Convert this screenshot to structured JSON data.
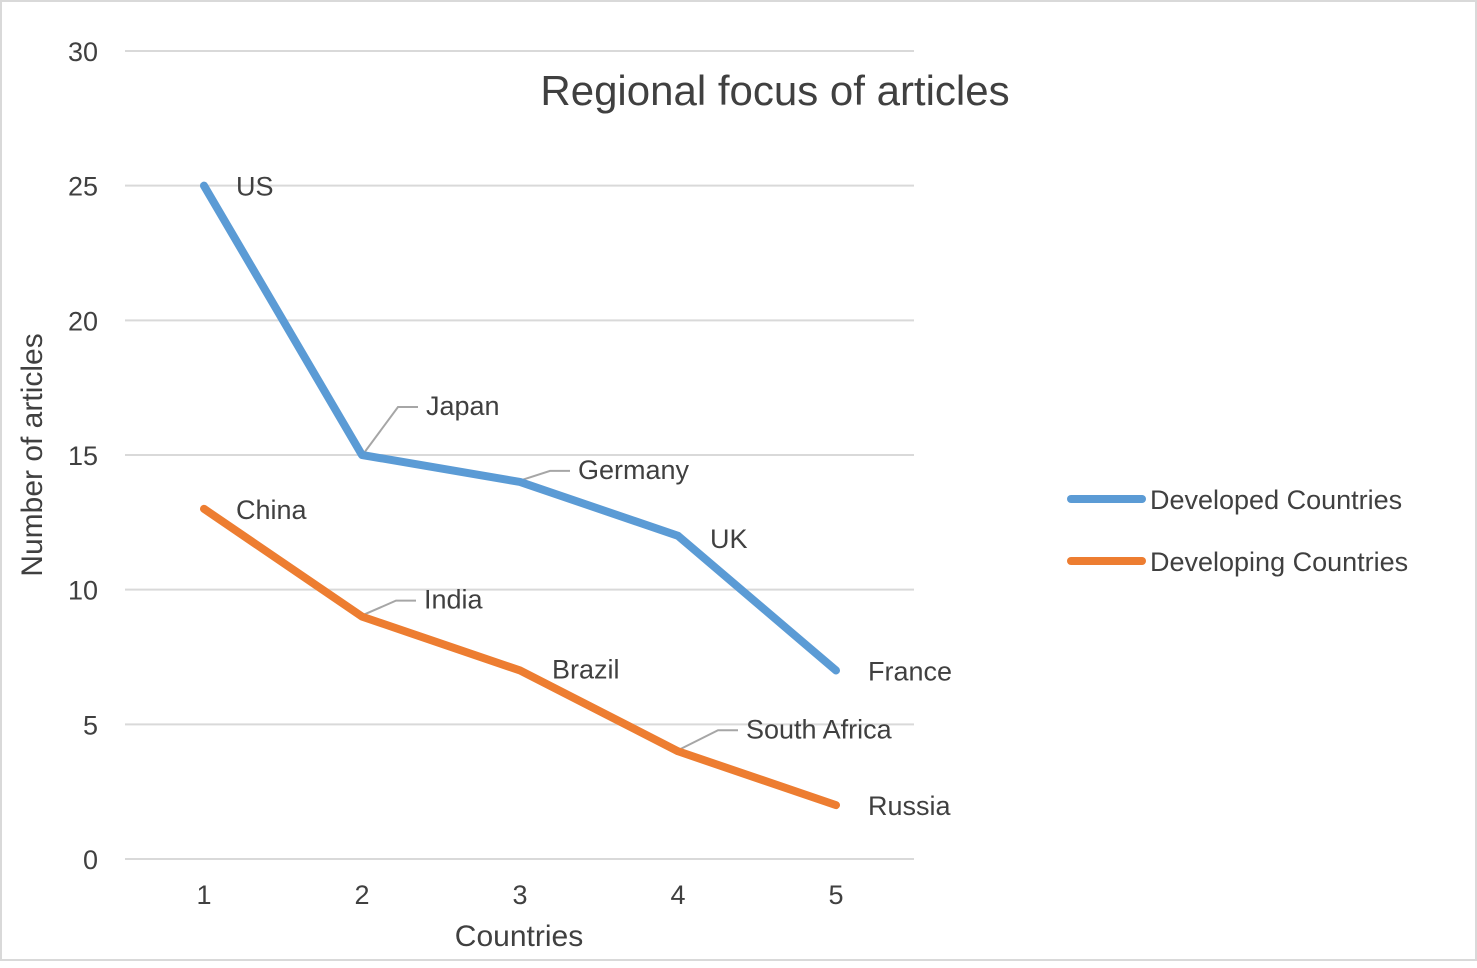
{
  "chart_data": {
    "type": "line",
    "title": "Regional focus of articles",
    "xlabel": "Countries",
    "ylabel": "Number of articles",
    "categories": [
      "1",
      "2",
      "3",
      "4",
      "5"
    ],
    "ylim": [
      0,
      30
    ],
    "yticks": [
      "0",
      "5",
      "10",
      "15",
      "20",
      "25",
      "30"
    ],
    "grid": true,
    "legend_position": "right",
    "series": [
      {
        "name": "Developed Countries",
        "color": "#5b9bd5",
        "values": [
          25,
          15,
          14,
          12,
          7
        ],
        "point_labels": [
          "US",
          "Japan",
          "Germany",
          "UK",
          "France"
        ]
      },
      {
        "name": "Developing Countries",
        "color": "#ed7d31",
        "values": [
          13,
          9,
          7,
          4,
          2
        ],
        "point_labels": [
          "China",
          "India",
          "Brazil",
          "South Africa",
          "Russia"
        ]
      }
    ]
  }
}
